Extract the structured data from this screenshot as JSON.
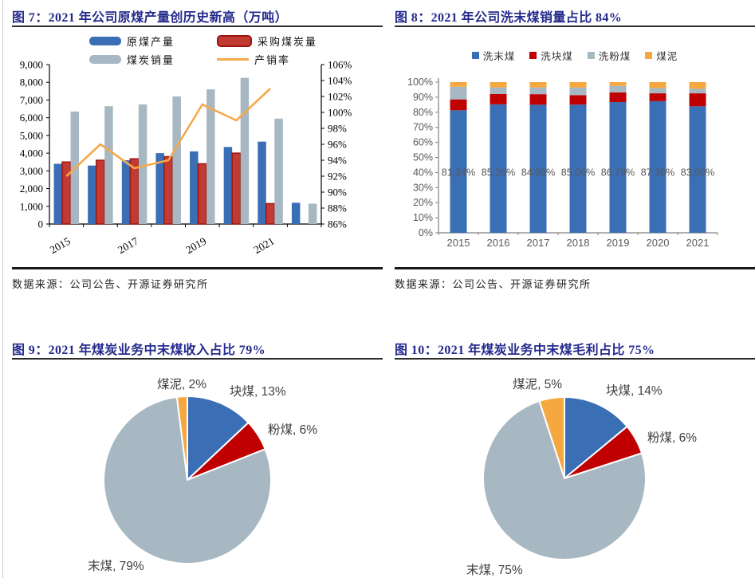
{
  "page": {
    "kind": "research-report-figures"
  },
  "chart_data": [
    {
      "id": "fig7",
      "type": "bar+line",
      "title": "图 7：2021 年公司原煤产量创历史新高（万吨）",
      "source": "数据来源：公司公告、开源证券研究所",
      "categories": [
        "2015",
        "2016",
        "2017",
        "2018",
        "2019",
        "2020",
        "2021",
        "2022"
      ],
      "x_tick_labels": [
        "2015",
        "2017",
        "2019",
        "2021"
      ],
      "x_tick_groups": [
        0,
        2,
        4,
        6
      ],
      "series": [
        {
          "name": "原煤产量",
          "type": "bar",
          "color": "#3A6EB5",
          "values": [
            3400,
            3300,
            3600,
            4000,
            4100,
            4350,
            4650,
            1200
          ]
        },
        {
          "name": "采购煤炭量",
          "type": "bar",
          "color": "#C23B32",
          "border": "#9C1511",
          "values": [
            3500,
            3600,
            3680,
            3800,
            3400,
            4000,
            1150,
            null
          ]
        },
        {
          "name": "煤炭销量",
          "type": "bar",
          "color": "#A7B8C3",
          "values": [
            6350,
            6650,
            6750,
            7200,
            7600,
            8250,
            5950,
            1150
          ]
        },
        {
          "name": "产销率",
          "type": "line",
          "axis": "right",
          "color": "#F5A94B",
          "values": [
            92,
            96,
            93,
            94,
            101,
            99,
            103,
            null
          ]
        }
      ],
      "left_axis": {
        "min": 0,
        "max": 9000,
        "tick_labels": [
          "9,000",
          "8,000",
          "7,000",
          "6,000",
          "5,000",
          "4,000",
          "3,000",
          "2,000",
          "1,000",
          "0"
        ]
      },
      "right_axis": {
        "min": 86,
        "max": 106,
        "unit": "%",
        "tick_labels": [
          "106%",
          "104%",
          "102%",
          "100%",
          "98%",
          "96%",
          "94%",
          "92%",
          "90%",
          "88%",
          "86%"
        ]
      }
    },
    {
      "id": "fig8",
      "type": "stacked-bar-100",
      "title": "图 8：2021 年公司洗末煤销量占比 84%",
      "source": "数据来源：公司公告、开源证券研究所",
      "categories": [
        "2015",
        "2016",
        "2017",
        "2018",
        "2019",
        "2020",
        "2021"
      ],
      "series": [
        {
          "name": "洗末煤",
          "color": "#3A6EB5",
          "values": [
            81.34,
            85.26,
            84.99,
            85.06,
            86.79,
            87.36,
            83.96
          ]
        },
        {
          "name": "洗块煤",
          "color": "#C00000",
          "values": [
            7.2,
            6.9,
            7.0,
            6.3,
            6.4,
            5.2,
            8.6
          ]
        },
        {
          "name": "洗粉煤",
          "color": "#A7B8C3",
          "values": [
            8.4,
            4.3,
            4.5,
            5.0,
            4.3,
            3.5,
            3.0
          ]
        },
        {
          "name": "煤泥",
          "color": "#F4A83F",
          "values": [
            3.06,
            3.54,
            3.51,
            3.64,
            2.51,
            3.94,
            4.44
          ]
        }
      ],
      "bar_labels": [
        "81.34%",
        "85.26%",
        "84.99%",
        "85.06%",
        "86.79%",
        "87.36%",
        "83.96%"
      ],
      "y_axis": {
        "min": 0,
        "max": 100,
        "unit": "%",
        "tick_labels": [
          "100%",
          "90%",
          "80%",
          "70%",
          "60%",
          "50%",
          "40%",
          "30%",
          "20%",
          "10%",
          "0%"
        ]
      }
    },
    {
      "id": "fig9",
      "type": "pie",
      "title": "图 9：2021 年煤炭业务中末煤收入占比 79%",
      "slices": [
        {
          "name": "块煤",
          "pct": 13,
          "color": "#3A6EB5",
          "label": "块煤, 13%"
        },
        {
          "name": "粉煤",
          "pct": 6,
          "color": "#C00000",
          "label": "粉煤, 6%"
        },
        {
          "name": "末煤",
          "pct": 79,
          "color": "#A7B8C3",
          "label": "末煤, 79%"
        },
        {
          "name": "煤泥",
          "pct": 2,
          "color": "#F4A83F",
          "label": "煤泥, 2%"
        }
      ]
    },
    {
      "id": "fig10",
      "type": "pie",
      "title": "图 10：2021 年煤炭业务中末煤毛利占比 75%",
      "slices": [
        {
          "name": "块煤",
          "pct": 14,
          "color": "#3A6EB5",
          "label": "块煤, 14%"
        },
        {
          "name": "粉煤",
          "pct": 6,
          "color": "#C00000",
          "label": "粉煤, 6%"
        },
        {
          "name": "末煤",
          "pct": 75,
          "color": "#A7B8C3",
          "label": "末煤, 75%"
        },
        {
          "name": "煤泥",
          "pct": 5,
          "color": "#F4A83F",
          "label": "煤泥, 5%"
        }
      ]
    }
  ]
}
